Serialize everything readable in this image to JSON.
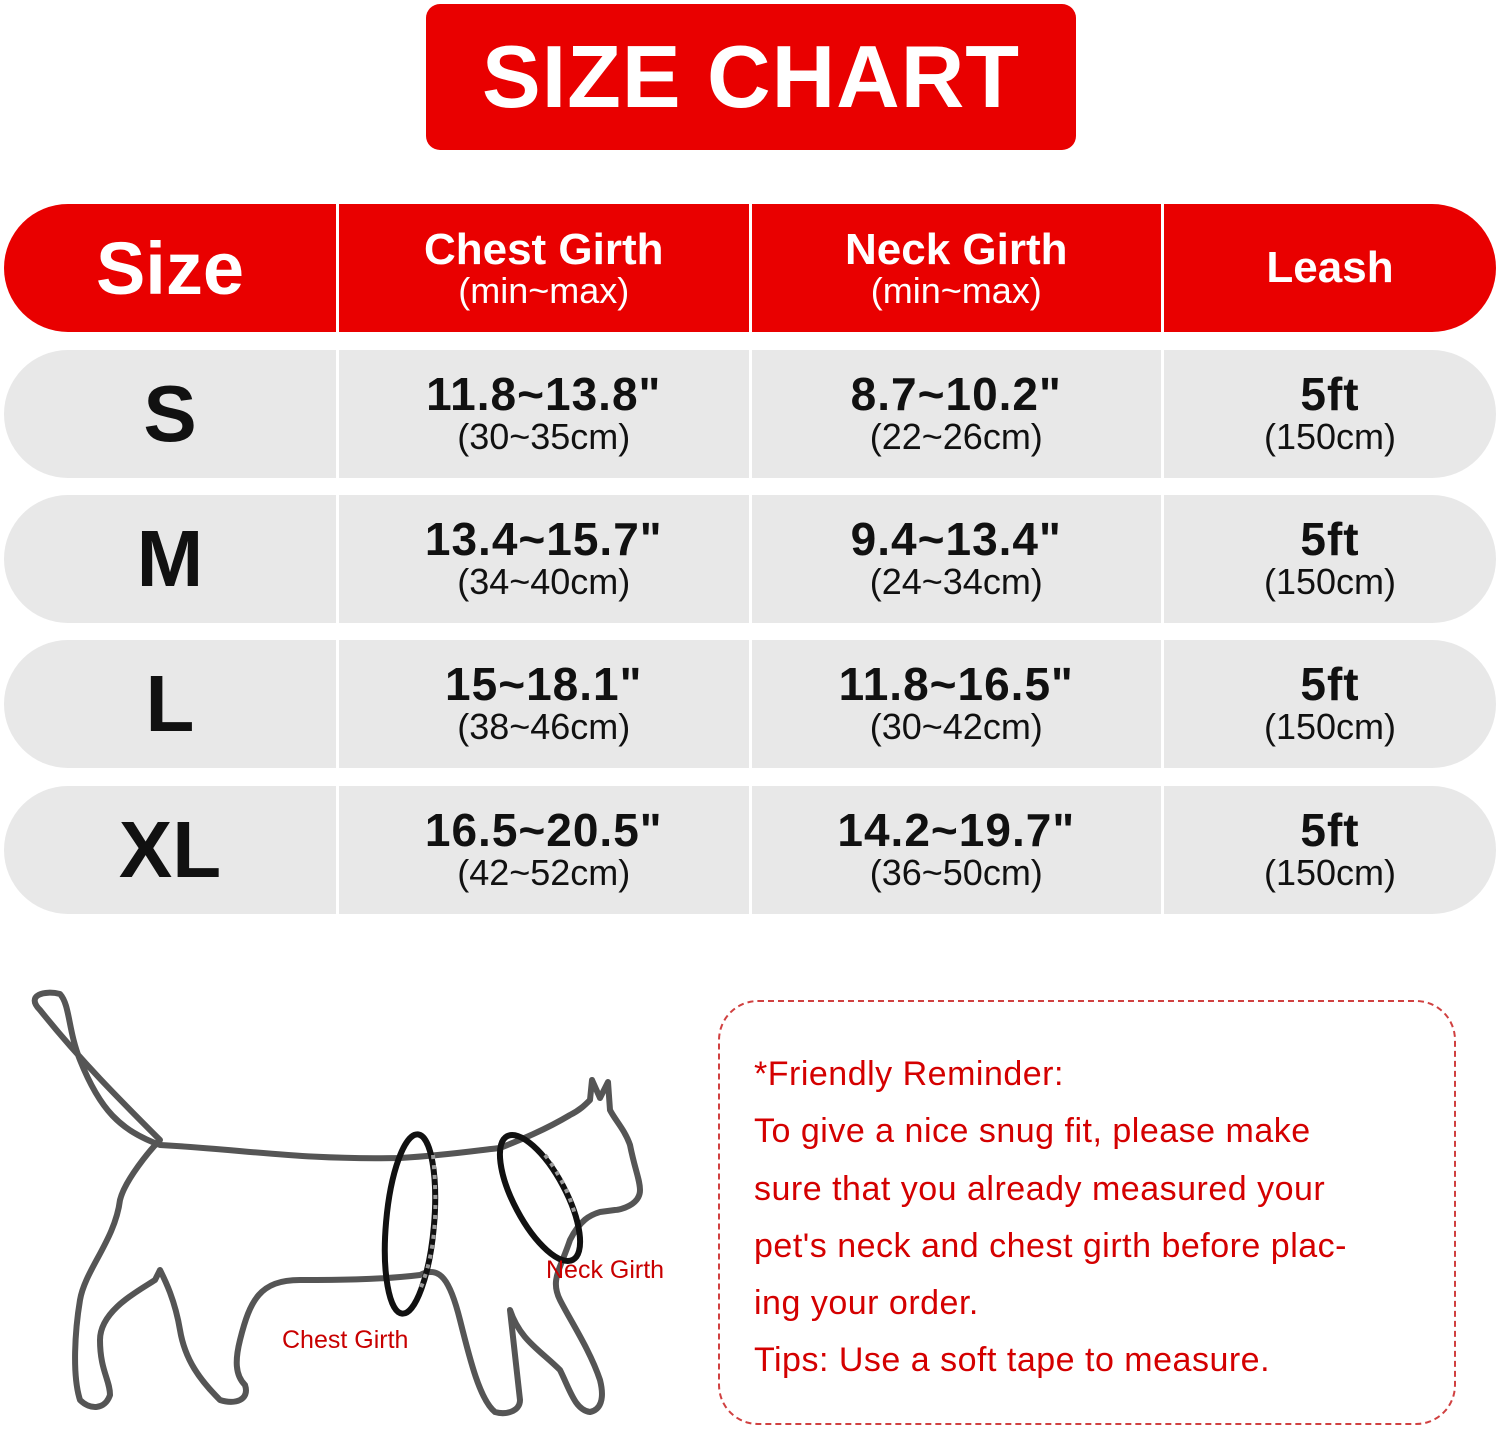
{
  "title": "SIZE CHART",
  "colors": {
    "accent": "#e90000",
    "row_bg": "#e8e8e8",
    "note_text": "#d40000"
  },
  "chart_data": {
    "type": "table",
    "headers": [
      {
        "main": "Size",
        "sub": ""
      },
      {
        "main": "Chest Girth",
        "sub": "(min~max)"
      },
      {
        "main": "Neck Girth",
        "sub": "(min~max)"
      },
      {
        "main": "Leash",
        "sub": ""
      }
    ],
    "rows": [
      {
        "size": "S",
        "chest": "11.8~13.8\"",
        "chest_cm": "(30~35cm)",
        "neck": "8.7~10.2\"",
        "neck_cm": "(22~26cm)",
        "leash": "5ft",
        "leash_cm": "(150cm)"
      },
      {
        "size": "M",
        "chest": "13.4~15.7\"",
        "chest_cm": "(34~40cm)",
        "neck": "9.4~13.4\"",
        "neck_cm": "(24~34cm)",
        "leash": "5ft",
        "leash_cm": "(150cm)"
      },
      {
        "size": "L",
        "chest": "15~18.1\"",
        "chest_cm": "(38~46cm)",
        "neck": "11.8~16.5\"",
        "neck_cm": "(30~42cm)",
        "leash": "5ft",
        "leash_cm": "(150cm)"
      },
      {
        "size": "XL",
        "chest": "16.5~20.5\"",
        "chest_cm": "(42~52cm)",
        "neck": "14.2~19.7\"",
        "neck_cm": "(36~50cm)",
        "leash": "5ft",
        "leash_cm": "(150cm)"
      }
    ]
  },
  "diagram": {
    "chest_label": "Chest Girth",
    "neck_label": "Neck Girth"
  },
  "reminder": {
    "lines": [
      "*Friendly Reminder:",
      "To give a nice snug fit, please make",
      "sure that you already measured your",
      "pet's neck and chest girth before plac-",
      "ing your order.",
      "Tips: Use a soft tape to measure."
    ]
  }
}
